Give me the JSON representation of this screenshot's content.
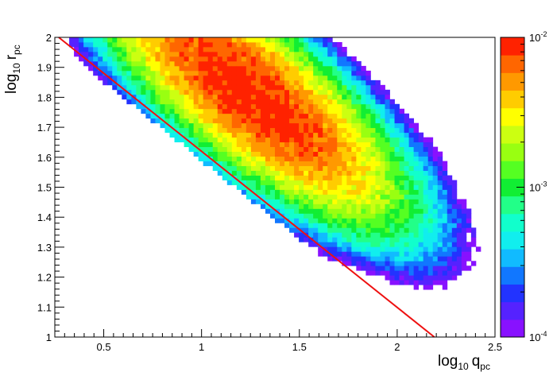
{
  "chart_data": {
    "type": "heatmap",
    "title": "",
    "xlabel": "log",
    "xlabel_sub": "10",
    "xlabel_var": "q",
    "xlabel_var_sub": "pc",
    "ylabel": "log",
    "ylabel_sub": "10",
    "ylabel_var": "r",
    "ylabel_var_sub": "pc",
    "xlim": [
      0.25,
      2.5
    ],
    "ylim": [
      1.0,
      2.0
    ],
    "x_ticks": [
      {
        "value": 0.5,
        "label": "0.5"
      },
      {
        "value": 1.0,
        "label": "1"
      },
      {
        "value": 1.5,
        "label": "1.5"
      },
      {
        "value": 2.0,
        "label": "2"
      },
      {
        "value": 2.5,
        "label": "2.5"
      }
    ],
    "y_ticks": [
      {
        "value": 1.0,
        "label": "1"
      },
      {
        "value": 1.1,
        "label": "1.1"
      },
      {
        "value": 1.2,
        "label": "1.2"
      },
      {
        "value": 1.3,
        "label": "1.3"
      },
      {
        "value": 1.4,
        "label": "1.4"
      },
      {
        "value": 1.5,
        "label": "1.5"
      },
      {
        "value": 1.6,
        "label": "1.6"
      },
      {
        "value": 1.7,
        "label": "1.7"
      },
      {
        "value": 1.8,
        "label": "1.8"
      },
      {
        "value": 1.9,
        "label": "1.9"
      },
      {
        "value": 2.0,
        "label": "2"
      }
    ],
    "z_scale": "log",
    "zlim": [
      0.0001,
      0.01
    ],
    "colorbar_labels": [
      {
        "value": 0.01,
        "base": "10",
        "exp": "-2"
      },
      {
        "value": 0.001,
        "base": "10",
        "exp": "-3"
      },
      {
        "value": 0.0001,
        "base": "10",
        "exp": "-4"
      }
    ],
    "line": {
      "points": [
        [
          0.27,
          2.0
        ],
        [
          2.19,
          1.0
        ]
      ],
      "color": "#ee1111"
    },
    "density_model": {
      "description": "2D histogram of log10 r_pc vs log10 q_pc; peak near (1.25, 1.81), bounded below by the red line",
      "peak": [
        1.25,
        1.81
      ],
      "peak_density": 0.01
    },
    "grid": false,
    "legend": "colorbar-right"
  }
}
